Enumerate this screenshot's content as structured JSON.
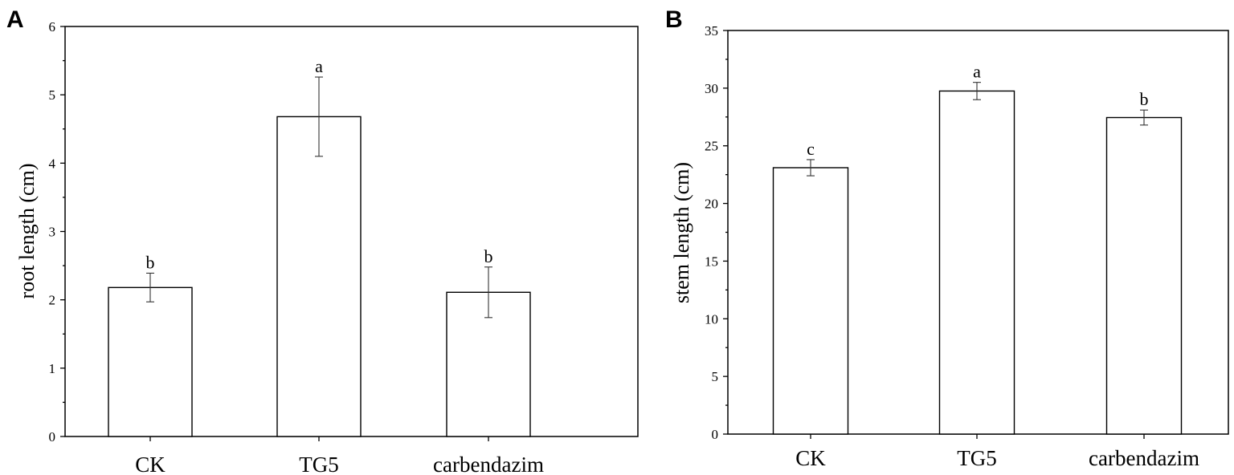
{
  "chart_data": [
    {
      "panel": "A",
      "type": "bar",
      "categories": [
        "CK",
        "TG5",
        "carbendazim"
      ],
      "values": [
        2.18,
        4.68,
        2.11
      ],
      "errors": [
        0.21,
        0.58,
        0.37
      ],
      "significance": [
        "b",
        "a",
        "b"
      ],
      "xlabel": "",
      "ylabel": "root length (cm)",
      "ylim": [
        0,
        6
      ],
      "major_ticks": [
        0,
        1,
        2,
        3,
        4,
        5,
        6
      ],
      "tick_labels": [
        "0",
        "1",
        "2",
        "3",
        "4",
        "5",
        "6"
      ],
      "grid": false
    },
    {
      "panel": "B",
      "type": "bar",
      "categories": [
        "CK",
        "TG5",
        "carbendazim"
      ],
      "values": [
        23.1,
        29.75,
        27.45
      ],
      "errors": [
        0.7,
        0.75,
        0.65
      ],
      "significance": [
        "c",
        "a",
        "b"
      ],
      "xlabel": "",
      "ylabel": "stem length (cm)",
      "ylim": [
        0,
        35
      ],
      "major_ticks": [
        0,
        5,
        10,
        15,
        20,
        25,
        30,
        35
      ],
      "tick_labels": [
        "0",
        "5",
        "10",
        "15",
        "20",
        "25",
        "30",
        "35"
      ],
      "grid": false
    }
  ]
}
